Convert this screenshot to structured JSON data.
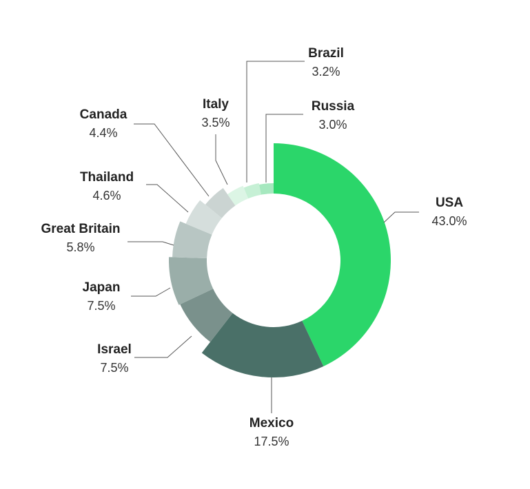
{
  "chart_data": {
    "type": "pie",
    "categories": [
      "USA",
      "Mexico",
      "Israel",
      "Japan",
      "Great Britain",
      "Thailand",
      "Canada",
      "Italy",
      "Brazil",
      "Russia"
    ],
    "values": [
      43.0,
      17.5,
      7.5,
      7.5,
      5.8,
      4.6,
      4.4,
      3.5,
      3.2,
      3.0
    ],
    "value_labels": [
      "43.0%",
      "17.5%",
      "7.5%",
      "7.5%",
      "5.8%",
      "4.6%",
      "4.4%",
      "3.5%",
      "3.2%",
      "3.0%"
    ],
    "colors": [
      "#2bd66a",
      "#4a7068",
      "#7a918c",
      "#9aaea9",
      "#b8c6c3",
      "#d5dedc",
      "#cbd4d2",
      "#dcf5e5",
      "#c6f0d5",
      "#a6e8bf"
    ]
  }
}
